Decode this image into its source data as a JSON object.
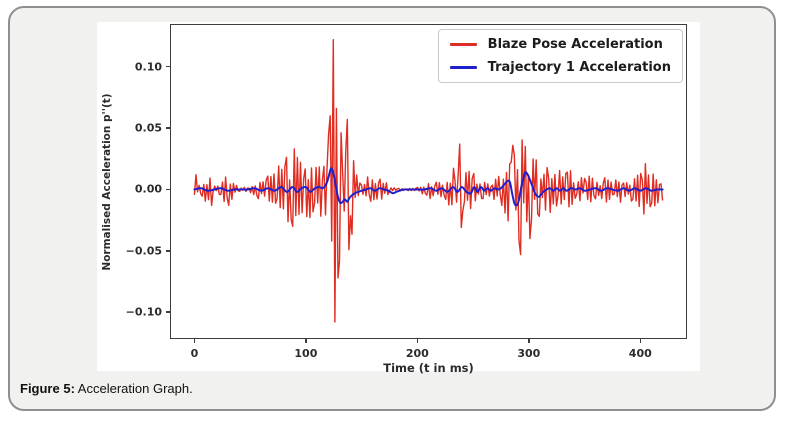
{
  "figure": {
    "caption_label": "Figure 5:",
    "caption_text": " Acceleration Graph."
  },
  "chart_data": {
    "type": "line",
    "title": "",
    "xlabel": "Time (t in ms)",
    "ylabel": "Normalised Acceleration p''(t)",
    "xlim": [
      -21,
      441
    ],
    "ylim": [
      -0.121,
      0.134
    ],
    "grid": false,
    "xticks": {
      "values": [
        0,
        100,
        200,
        300,
        400
      ],
      "labels": [
        "0",
        "100",
        "200",
        "300",
        "400"
      ]
    },
    "yticks": {
      "values": [
        0.1,
        0.05,
        0.0,
        -0.05,
        -0.1
      ],
      "labels": [
        "0.10",
        "0.05",
        "0.00",
        "−0.05",
        "−0.10"
      ]
    },
    "legend": {
      "position": "upper right",
      "entries": [
        {
          "label": "Blaze Pose Acceleration",
          "color": "#e02d22"
        },
        {
          "label": "Trajectory 1 Acceleration",
          "color": "#1f1fcd"
        }
      ]
    },
    "series": [
      {
        "name": "Blaze Pose Acceleration",
        "color": "#e02d22",
        "style": "noisy",
        "t_end": 420,
        "sample_step_ms": 1.4,
        "noise_seed": 9,
        "envelope": [
          [
            0,
            0.011
          ],
          [
            2,
            0.006
          ],
          [
            5,
            0.003
          ],
          [
            8,
            0.009
          ],
          [
            11,
            0.011
          ],
          [
            14,
            0.012
          ],
          [
            16,
            0.004
          ],
          [
            20,
            0.002
          ],
          [
            24,
            0.008
          ],
          [
            27,
            0.011
          ],
          [
            30,
            0.012
          ],
          [
            33,
            0.011
          ],
          [
            36,
            0.009
          ],
          [
            38,
            0.003
          ],
          [
            42,
            0.002
          ],
          [
            46,
            0.002
          ],
          [
            50,
            0.004
          ],
          [
            54,
            0.006
          ],
          [
            58,
            0.008
          ],
          [
            62,
            0.01
          ],
          [
            66,
            0.013
          ],
          [
            70,
            0.016
          ],
          [
            74,
            0.019
          ],
          [
            78,
            0.022
          ],
          [
            82,
            0.026
          ],
          [
            86,
            0.03
          ],
          [
            89,
            0.033
          ],
          [
            92,
            0.027
          ],
          [
            95,
            0.024
          ],
          [
            98,
            0.021
          ],
          [
            101,
            0.023
          ],
          [
            104,
            0.024
          ],
          [
            107,
            0.021
          ],
          [
            110,
            0.022
          ],
          [
            113,
            0.024
          ],
          [
            116,
            0.027
          ],
          [
            118,
            0.032
          ],
          [
            120,
            0.045
          ],
          [
            122,
            0.062
          ],
          [
            124,
            0.095
          ],
          [
            125,
            0.122
          ],
          [
            126,
            0.112
          ],
          [
            127,
            0.105
          ],
          [
            128,
            0.082
          ],
          [
            130,
            0.062
          ],
          [
            132,
            0.05
          ],
          [
            134,
            0.042
          ],
          [
            136,
            0.046
          ],
          [
            138,
            0.056
          ],
          [
            140,
            0.048
          ],
          [
            142,
            0.036
          ],
          [
            144,
            0.026
          ],
          [
            146,
            0.018
          ],
          [
            149,
            0.012
          ],
          [
            152,
            0.01
          ],
          [
            156,
            0.012
          ],
          [
            160,
            0.01
          ],
          [
            164,
            0.008
          ],
          [
            168,
            0.009
          ],
          [
            171,
            0.007
          ],
          [
            174,
            0.004
          ],
          [
            177,
            0.002
          ],
          [
            181,
            0.001
          ],
          [
            186,
            0.001
          ],
          [
            192,
            0.001
          ],
          [
            198,
            0.001
          ],
          [
            203,
            0.003
          ],
          [
            207,
            0.006
          ],
          [
            211,
            0.008
          ],
          [
            215,
            0.008
          ],
          [
            219,
            0.007
          ],
          [
            223,
            0.009
          ],
          [
            227,
            0.012
          ],
          [
            230,
            0.016
          ],
          [
            233,
            0.024
          ],
          [
            236,
            0.032
          ],
          [
            238,
            0.037
          ],
          [
            240,
            0.031
          ],
          [
            243,
            0.024
          ],
          [
            246,
            0.018
          ],
          [
            249,
            0.015
          ],
          [
            252,
            0.013
          ],
          [
            255,
            0.012
          ],
          [
            258,
            0.01
          ],
          [
            261,
            0.008
          ],
          [
            264,
            0.006
          ],
          [
            267,
            0.007
          ],
          [
            270,
            0.009
          ],
          [
            273,
            0.013
          ],
          [
            276,
            0.019
          ],
          [
            279,
            0.027
          ],
          [
            282,
            0.033
          ],
          [
            285,
            0.036
          ],
          [
            288,
            0.033
          ],
          [
            291,
            0.044
          ],
          [
            293,
            0.042
          ],
          [
            296,
            0.038
          ],
          [
            299,
            0.036
          ],
          [
            302,
            0.031
          ],
          [
            305,
            0.028
          ],
          [
            308,
            0.025
          ],
          [
            311,
            0.022
          ],
          [
            314,
            0.024
          ],
          [
            317,
            0.021
          ],
          [
            320,
            0.018
          ],
          [
            324,
            0.016
          ],
          [
            328,
            0.019
          ],
          [
            332,
            0.016
          ],
          [
            336,
            0.018
          ],
          [
            340,
            0.014
          ],
          [
            344,
            0.013
          ],
          [
            348,
            0.011
          ],
          [
            352,
            0.012
          ],
          [
            356,
            0.01
          ],
          [
            360,
            0.009
          ],
          [
            364,
            0.011
          ],
          [
            368,
            0.012
          ],
          [
            372,
            0.01
          ],
          [
            376,
            0.009
          ],
          [
            380,
            0.012
          ],
          [
            384,
            0.01
          ],
          [
            388,
            0.011
          ],
          [
            392,
            0.012
          ],
          [
            396,
            0.014
          ],
          [
            400,
            0.018
          ],
          [
            404,
            0.02
          ],
          [
            408,
            0.017
          ],
          [
            412,
            0.014
          ],
          [
            416,
            0.012
          ],
          [
            420,
            0.01
          ]
        ],
        "spikes": [
          [
            1.4,
            0.012
          ],
          [
            15.4,
            -0.013
          ],
          [
            30.8,
            -0.013
          ],
          [
            88.2,
            -0.03
          ],
          [
            89.6,
            0.033
          ],
          [
            120.4,
            0.045
          ],
          [
            122.0,
            0.06
          ],
          [
            123.4,
            -0.042
          ],
          [
            125.0,
            0.122
          ],
          [
            126.4,
            -0.108
          ],
          [
            127.8,
            0.066
          ],
          [
            129.4,
            -0.072
          ],
          [
            137.8,
            0.057
          ],
          [
            139.2,
            -0.049
          ],
          [
            238.0,
            0.037
          ],
          [
            239.4,
            -0.031
          ],
          [
            285.6,
            0.036
          ],
          [
            292.0,
            -0.053
          ],
          [
            296.8,
            0.035
          ],
          [
            301.0,
            -0.04
          ],
          [
            403.2,
            -0.02
          ],
          [
            404.6,
            0.021
          ]
        ]
      },
      {
        "name": "Trajectory 1 Acceleration",
        "color": "#1f1fcd",
        "style": "smooth",
        "points": [
          [
            0,
            0.0
          ],
          [
            6,
            0.001
          ],
          [
            12,
            -0.001
          ],
          [
            18,
            0.0
          ],
          [
            24,
            0.001
          ],
          [
            30,
            -0.001
          ],
          [
            36,
            0.0
          ],
          [
            42,
            0.0
          ],
          [
            48,
            0.0
          ],
          [
            54,
            0.001
          ],
          [
            60,
            -0.001
          ],
          [
            66,
            0.001
          ],
          [
            72,
            -0.001
          ],
          [
            78,
            0.002
          ],
          [
            83,
            -0.002
          ],
          [
            88,
            0.002
          ],
          [
            92,
            -0.002
          ],
          [
            96,
            0.001
          ],
          [
            100,
            0.002
          ],
          [
            104,
            -0.002
          ],
          [
            108,
            0.001
          ],
          [
            112,
            0.002
          ],
          [
            115,
            0.001
          ],
          [
            118,
            0.004
          ],
          [
            120,
            0.009
          ],
          [
            122,
            0.016
          ],
          [
            123,
            0.017
          ],
          [
            125,
            0.012
          ],
          [
            127,
            0.002
          ],
          [
            129,
            -0.007
          ],
          [
            131,
            -0.011
          ],
          [
            133,
            -0.01
          ],
          [
            135,
            -0.008
          ],
          [
            137,
            -0.01
          ],
          [
            139,
            -0.007
          ],
          [
            141,
            -0.005
          ],
          [
            144,
            -0.003
          ],
          [
            147,
            -0.002
          ],
          [
            150,
            -0.001
          ],
          [
            154,
            0.0
          ],
          [
            158,
            0.001
          ],
          [
            162,
            -0.001
          ],
          [
            166,
            0.001
          ],
          [
            170,
            0.0
          ],
          [
            174,
            -0.001
          ],
          [
            178,
            -0.003
          ],
          [
            181,
            -0.002
          ],
          [
            184,
            -0.001
          ],
          [
            188,
            0.0
          ],
          [
            194,
            0.0
          ],
          [
            200,
            0.0
          ],
          [
            206,
            0.0
          ],
          [
            212,
            0.001
          ],
          [
            217,
            -0.001
          ],
          [
            222,
            0.001
          ],
          [
            227,
            -0.002
          ],
          [
            232,
            0.002
          ],
          [
            236,
            -0.002
          ],
          [
            240,
            0.002
          ],
          [
            244,
            -0.002
          ],
          [
            248,
            -0.003
          ],
          [
            251,
            0.002
          ],
          [
            254,
            -0.002
          ],
          [
            257,
            0.002
          ],
          [
            260,
            -0.001
          ],
          [
            263,
            0.001
          ],
          [
            266,
            -0.001
          ],
          [
            269,
            0.001
          ],
          [
            272,
            0.0
          ],
          [
            275,
            0.001
          ],
          [
            278,
            0.004
          ],
          [
            281,
            0.007
          ],
          [
            283,
            0.006
          ],
          [
            285,
            -0.003
          ],
          [
            287,
            -0.011
          ],
          [
            289,
            -0.013
          ],
          [
            291,
            -0.009
          ],
          [
            293,
            0.001
          ],
          [
            295,
            0.009
          ],
          [
            297,
            0.014
          ],
          [
            299,
            0.012
          ],
          [
            301,
            0.008
          ],
          [
            303,
            0.003
          ],
          [
            305,
            -0.002
          ],
          [
            307,
            -0.005
          ],
          [
            309,
            -0.006
          ],
          [
            311,
            -0.004
          ],
          [
            313,
            -0.002
          ],
          [
            316,
            0.0
          ],
          [
            319,
            0.001
          ],
          [
            322,
            -0.001
          ],
          [
            325,
            0.001
          ],
          [
            328,
            -0.001
          ],
          [
            331,
            0.001
          ],
          [
            334,
            -0.001
          ],
          [
            338,
            0.001
          ],
          [
            342,
            0.0
          ],
          [
            346,
            0.001
          ],
          [
            350,
            -0.001
          ],
          [
            355,
            0.0
          ],
          [
            360,
            0.001
          ],
          [
            365,
            -0.001
          ],
          [
            370,
            0.001
          ],
          [
            375,
            0.0
          ],
          [
            380,
            -0.001
          ],
          [
            385,
            0.001
          ],
          [
            390,
            -0.001
          ],
          [
            395,
            0.001
          ],
          [
            400,
            -0.001
          ],
          [
            405,
            0.001
          ],
          [
            410,
            -0.001
          ],
          [
            415,
            0.0
          ],
          [
            420,
            0.0
          ]
        ]
      }
    ]
  }
}
